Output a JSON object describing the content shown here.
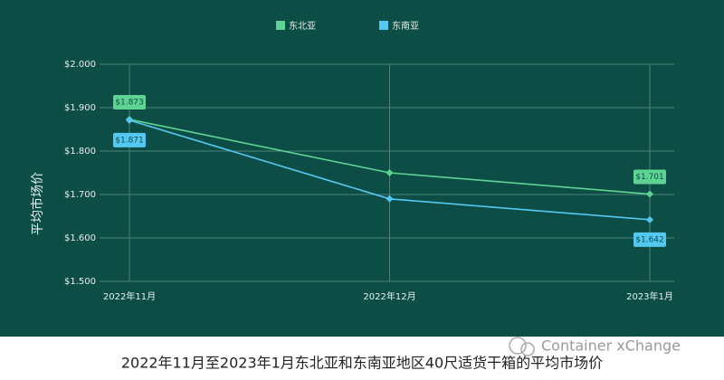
{
  "chart_data": {
    "type": "line",
    "y_axis_label": "平均市场价",
    "caption": "2022年11月至2023年1月东北亚和东南亚地区40尺适货干箱的平均市场价",
    "watermark": "Container xChange",
    "categories": [
      "2022年11月",
      "2022年12月",
      "2023年1月"
    ],
    "series": [
      {
        "name": "东北亚",
        "color": "#5fd394",
        "values": [
          1873,
          1750,
          1701
        ],
        "value_labels": [
          "$1.873",
          null,
          "$1.701"
        ]
      },
      {
        "name": "东南亚",
        "color": "#55c8f2",
        "values": [
          1871,
          1690,
          1642
        ],
        "value_labels": [
          "$1.871",
          null,
          "$1.642"
        ]
      }
    ],
    "ylim": [
      1500,
      2000
    ],
    "yticks": [
      {
        "value": 1500,
        "label": "$1.500"
      },
      {
        "value": 1600,
        "label": "$1.600"
      },
      {
        "value": 1700,
        "label": "$1.700"
      },
      {
        "value": 1800,
        "label": "$1.800"
      },
      {
        "value": 1900,
        "label": "$1.900"
      },
      {
        "value": 2000,
        "label": "$2.000"
      }
    ],
    "grid": true,
    "legend": "top"
  }
}
